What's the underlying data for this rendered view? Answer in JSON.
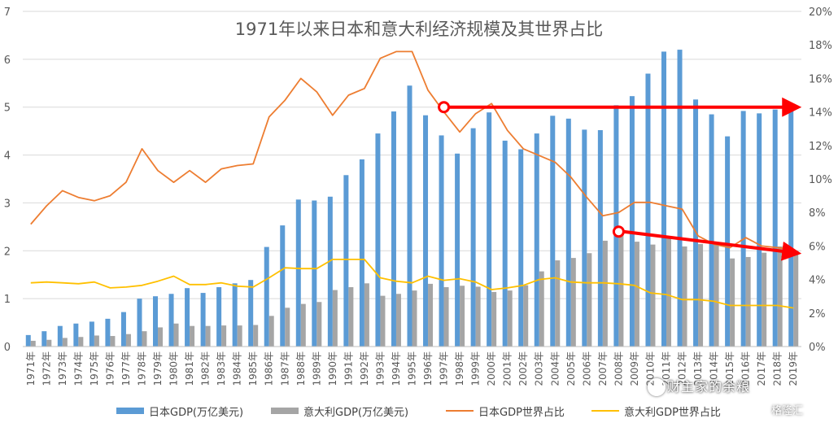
{
  "chart_data": {
    "type": "bar",
    "title": "1971年以来日本和意大利经济规模及其世界占比",
    "categories": [
      "1971年",
      "1972年",
      "1973年",
      "1974年",
      "1975年",
      "1976年",
      "1977年",
      "1978年",
      "1979年",
      "1980年",
      "1981年",
      "1982年",
      "1983年",
      "1984年",
      "1985年",
      "1986年",
      "1987年",
      "1988年",
      "1989年",
      "1990年",
      "1991年",
      "1992年",
      "1993年",
      "1994年",
      "1995年",
      "1996年",
      "1997年",
      "1998年",
      "1999年",
      "2000年",
      "2001年",
      "2002年",
      "2003年",
      "2004年",
      "2005年",
      "2006年",
      "2007年",
      "2008年",
      "2009年",
      "2010年",
      "2011年",
      "2012年",
      "2013年",
      "2014年",
      "2015年",
      "2016年",
      "2017年",
      "2018年",
      "2019年"
    ],
    "y_left": {
      "ylim": [
        0,
        7
      ],
      "ticks": [
        "0",
        "1",
        "2",
        "3",
        "4",
        "5",
        "6",
        "7"
      ]
    },
    "y_right": {
      "ylim": [
        0,
        20
      ],
      "ticks": [
        "0%",
        "2%",
        "4%",
        "6%",
        "8%",
        "10%",
        "12%",
        "14%",
        "16%",
        "18%",
        "20%"
      ]
    },
    "grid": true,
    "legend_position": "bottom",
    "series": [
      {
        "name": "日本GDP(万亿美元)",
        "kind": "bar",
        "axis": "left",
        "color": "#5b9bd5",
        "values": [
          0.24,
          0.32,
          0.43,
          0.48,
          0.52,
          0.58,
          0.72,
          1.0,
          1.05,
          1.1,
          1.22,
          1.12,
          1.24,
          1.32,
          1.39,
          2.08,
          2.53,
          3.07,
          3.05,
          3.13,
          3.58,
          3.91,
          4.45,
          4.91,
          5.45,
          4.83,
          4.41,
          4.03,
          4.56,
          4.89,
          4.3,
          4.12,
          4.45,
          4.82,
          4.76,
          4.53,
          4.52,
          5.04,
          5.23,
          5.7,
          6.16,
          6.2,
          5.16,
          4.85,
          4.39,
          4.92,
          4.87,
          4.95,
          5.08
        ]
      },
      {
        "name": "意大利GDP(万亿美元)",
        "kind": "bar",
        "axis": "left",
        "color": "#a5a5a5",
        "values": [
          0.12,
          0.14,
          0.18,
          0.2,
          0.23,
          0.22,
          0.26,
          0.32,
          0.4,
          0.48,
          0.43,
          0.43,
          0.44,
          0.44,
          0.45,
          0.64,
          0.81,
          0.89,
          0.93,
          1.18,
          1.24,
          1.32,
          1.06,
          1.1,
          1.17,
          1.31,
          1.24,
          1.27,
          1.25,
          1.14,
          1.17,
          1.28,
          1.57,
          1.8,
          1.85,
          1.95,
          2.21,
          2.4,
          2.19,
          2.13,
          2.29,
          2.09,
          2.14,
          2.16,
          1.84,
          1.87,
          1.96,
          2.09,
          2.0
        ]
      },
      {
        "name": "日本GDP世界占比",
        "kind": "line",
        "axis": "right",
        "color": "#ed7d31",
        "values": [
          7.3,
          8.4,
          9.3,
          8.9,
          8.7,
          9.0,
          9.8,
          11.8,
          10.5,
          9.8,
          10.5,
          9.8,
          10.6,
          10.8,
          10.9,
          13.7,
          14.7,
          16.0,
          15.2,
          13.8,
          15.0,
          15.4,
          17.2,
          17.6,
          17.6,
          15.3,
          14.0,
          12.8,
          13.9,
          14.5,
          12.9,
          11.8,
          11.4,
          11.0,
          10.1,
          8.9,
          7.8,
          8.0,
          8.6,
          8.6,
          8.4,
          8.2,
          6.6,
          6.1,
          5.9,
          6.5,
          6.0,
          5.9,
          5.8
        ]
      },
      {
        "name": "意大利GDP世界占比",
        "kind": "line",
        "axis": "right",
        "color": "#ffc000",
        "values": [
          3.8,
          3.85,
          3.8,
          3.75,
          3.85,
          3.5,
          3.55,
          3.65,
          3.9,
          4.2,
          3.7,
          3.7,
          3.8,
          3.6,
          3.55,
          4.1,
          4.7,
          4.65,
          4.65,
          5.2,
          5.2,
          5.2,
          4.1,
          3.9,
          3.8,
          4.2,
          3.95,
          4.05,
          3.85,
          3.4,
          3.5,
          3.65,
          4.0,
          4.1,
          3.85,
          3.8,
          3.8,
          3.75,
          3.65,
          3.2,
          3.1,
          2.8,
          2.8,
          2.7,
          2.45,
          2.45,
          2.45,
          2.45,
          2.3
        ]
      }
    ],
    "annotations": [
      {
        "type": "arrow",
        "color": "#ff0000",
        "from": {
          "x": "1997年",
          "y": 5.0
        },
        "to": {
          "x": "2019年",
          "y": 5.0
        }
      },
      {
        "type": "arrow",
        "color": "#ff0000",
        "from": {
          "x": "2008年",
          "y": 2.4
        },
        "to": {
          "x": "2019年",
          "y": 1.95
        }
      }
    ]
  },
  "watermark": {
    "text": "财主家的余粮"
  },
  "logo": {
    "text": "格隆汇"
  }
}
